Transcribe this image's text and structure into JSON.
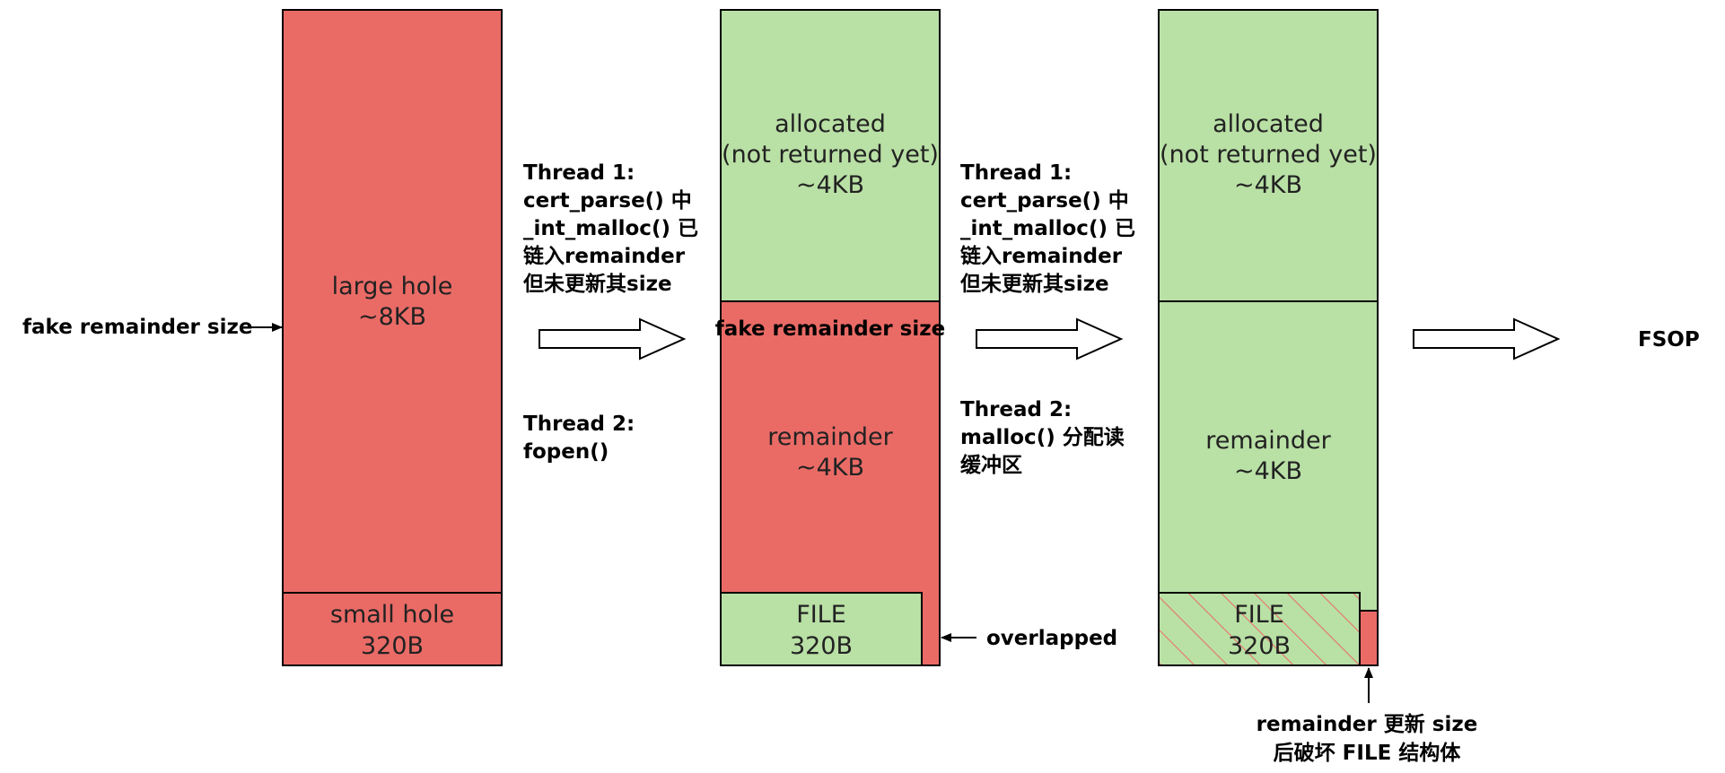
{
  "colors": {
    "red": "#ea6b66",
    "green": "#b9e0a5",
    "stroke": "#000000",
    "hatch": "#ea6b66"
  },
  "left_arrow_label": "fake remainder size",
  "col1": {
    "large_hole": {
      "line1": "large hole",
      "line2": "~8KB"
    },
    "small_hole": {
      "line1": "small hole",
      "line2": "320B"
    }
  },
  "step1": {
    "thread1": {
      "l1": "Thread 1:",
      "l2": "cert_parse() 中",
      "l3": "_int_malloc() 已",
      "l4": "链入remainder",
      "l5": "但未更新其size"
    },
    "thread2": {
      "l1": "Thread 2:",
      "l2": "fopen()"
    }
  },
  "col2": {
    "allocated": {
      "l1": "allocated",
      "l2": "(not returned yet)",
      "l3": "~4KB"
    },
    "fake_size": "fake remainder size",
    "remainder": {
      "l1": "remainder",
      "l2": "~4KB"
    },
    "file": {
      "l1": "FILE",
      "l2": "320B"
    },
    "overlapped": "overlapped"
  },
  "step2": {
    "thread1": {
      "l1": "Thread 1:",
      "l2": "cert_parse() 中",
      "l3": "_int_malloc() 已",
      "l4": "链入remainder",
      "l5": "但未更新其size"
    },
    "thread2": {
      "l1": "Thread 2:",
      "l2": "malloc() 分配读",
      "l3": "缓冲区"
    }
  },
  "col3": {
    "allocated": {
      "l1": "allocated",
      "l2": "(not returned yet)",
      "l3": "~4KB"
    },
    "remainder": {
      "l1": "remainder",
      "l2": "~4KB"
    },
    "file": {
      "l1": "FILE",
      "l2": "320B"
    },
    "note": {
      "l1": "remainder 更新 size",
      "l2": "后破坏 FILE 结构体"
    }
  },
  "result": "FSOP"
}
